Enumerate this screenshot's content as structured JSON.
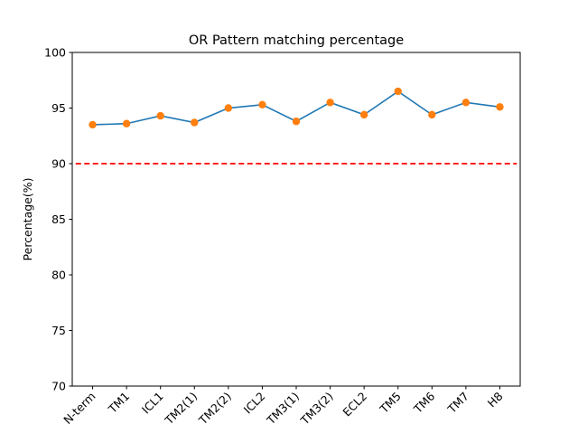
{
  "chart_data": {
    "type": "line",
    "title": "OR Pattern matching percentage",
    "xlabel": "",
    "ylabel": "Percentage(%)",
    "categories": [
      "N-term",
      "TM1",
      "ICL1",
      "TM2(1)",
      "TM2(2)",
      "ICL2",
      "TM3(1)",
      "TM3(2)",
      "ECL2",
      "TM5",
      "TM6",
      "TM7",
      "H8"
    ],
    "series": [
      {
        "values": [
          93.5,
          93.6,
          94.3,
          93.7,
          95.0,
          95.3,
          93.8,
          95.5,
          94.4,
          96.5,
          94.4,
          95.5,
          95.1
        ],
        "line_color": "#1f77b4",
        "marker_color": "#ff7f0e"
      }
    ],
    "reference_line": {
      "value": 90,
      "color": "#ff0000",
      "style": "dashed"
    },
    "ylim": [
      70,
      100
    ],
    "yticks": [
      70,
      75,
      80,
      85,
      90,
      95,
      100
    ],
    "grid": false,
    "legend": "none"
  }
}
